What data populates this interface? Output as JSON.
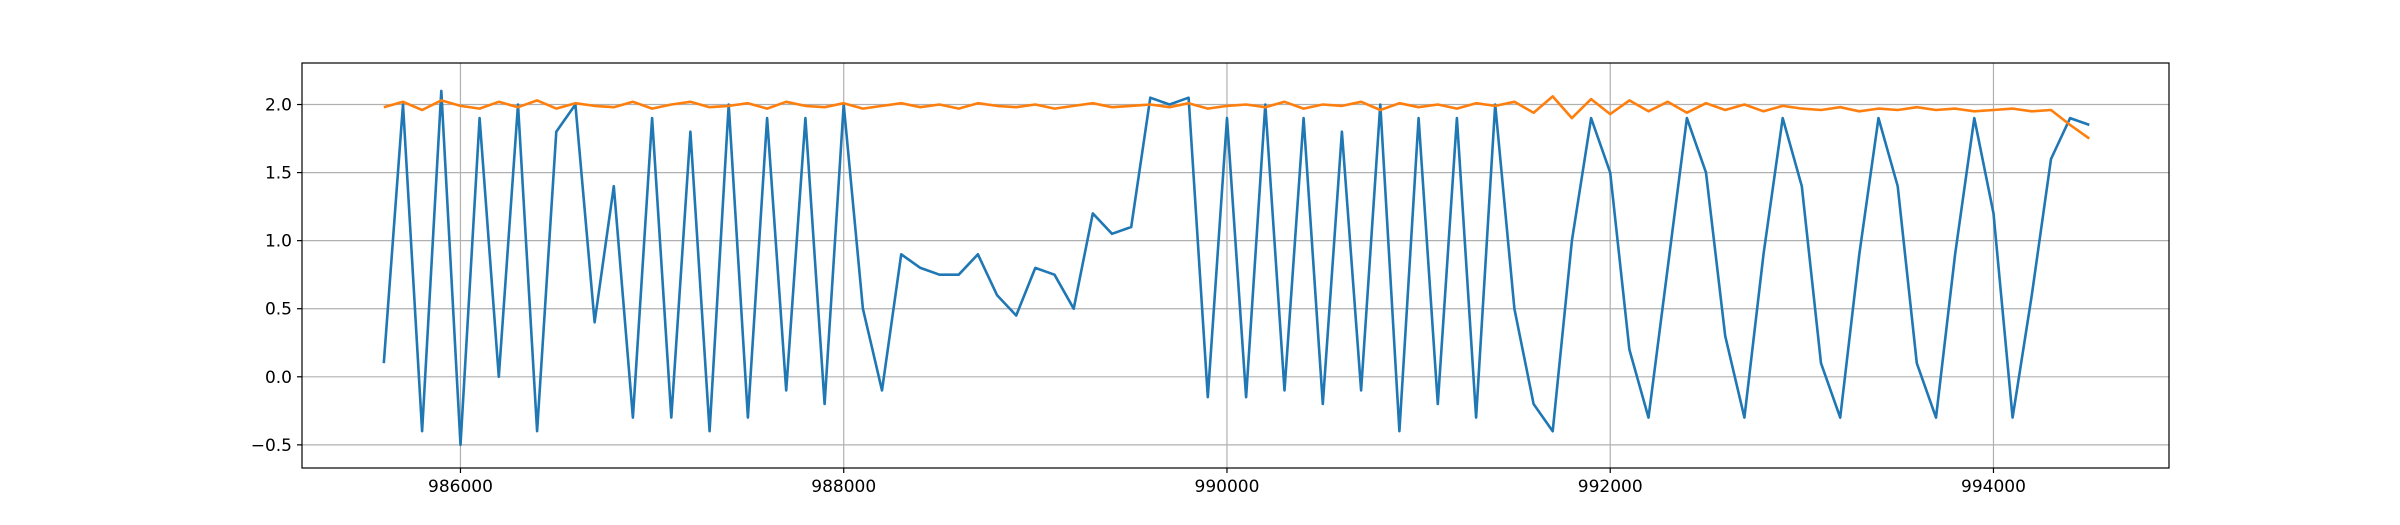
{
  "chart_data": {
    "type": "line",
    "x": [
      985600,
      985700,
      985800,
      985900,
      986000,
      986100,
      986200,
      986300,
      986400,
      986500,
      986600,
      986700,
      986800,
      986900,
      987000,
      987100,
      987200,
      987300,
      987400,
      987500,
      987600,
      987700,
      987800,
      987900,
      988000,
      988100,
      988200,
      988300,
      988400,
      988500,
      988600,
      988700,
      988800,
      988900,
      989000,
      989100,
      989200,
      989300,
      989400,
      989500,
      989600,
      989700,
      989800,
      989900,
      990000,
      990100,
      990200,
      990300,
      990400,
      990500,
      990600,
      990700,
      990800,
      990900,
      991000,
      991100,
      991200,
      991300,
      991400,
      991500,
      991600,
      991700,
      991800,
      991900,
      992000,
      992100,
      992200,
      992300,
      992400,
      992500,
      992600,
      992700,
      992800,
      992900,
      993000,
      993100,
      993200,
      993300,
      993400,
      993500,
      993600,
      993700,
      993800,
      993900,
      994000,
      994100,
      994200,
      994300,
      994400,
      994500
    ],
    "series": [
      {
        "color": "#1f77b4",
        "values": [
          0.1,
          2.0,
          -0.4,
          2.1,
          -0.5,
          1.9,
          0.0,
          2.0,
          -0.4,
          1.8,
          2.0,
          0.4,
          1.4,
          -0.3,
          1.9,
          -0.3,
          1.8,
          -0.4,
          2.0,
          -0.3,
          1.9,
          -0.1,
          1.9,
          -0.2,
          2.0,
          0.5,
          -0.1,
          0.9,
          0.8,
          0.75,
          0.75,
          0.9,
          0.6,
          0.45,
          0.8,
          0.75,
          0.5,
          1.2,
          1.05,
          1.1,
          2.05,
          2.0,
          2.05,
          -0.15,
          1.9,
          -0.15,
          2.0,
          -0.1,
          1.9,
          -0.2,
          1.8,
          -0.1,
          2.0,
          -0.4,
          1.9,
          -0.2,
          1.9,
          -0.3,
          2.0,
          0.5,
          -0.2,
          -0.4,
          1.0,
          1.9,
          1.5,
          0.2,
          -0.3,
          0.8,
          1.9,
          1.5,
          0.3,
          -0.3,
          0.9,
          1.9,
          1.4,
          0.1,
          -0.3,
          0.9,
          1.9,
          1.4,
          0.1,
          -0.3,
          0.9,
          1.9,
          1.2,
          -0.3,
          0.6,
          1.6,
          1.9,
          1.85
        ]
      },
      {
        "color": "#ff7f0e",
        "values": [
          1.98,
          2.02,
          1.96,
          2.03,
          1.99,
          1.97,
          2.02,
          1.98,
          2.03,
          1.97,
          2.01,
          1.99,
          1.98,
          2.02,
          1.97,
          2.0,
          2.02,
          1.98,
          1.99,
          2.01,
          1.97,
          2.02,
          1.99,
          1.98,
          2.01,
          1.97,
          1.99,
          2.01,
          1.98,
          2.0,
          1.97,
          2.01,
          1.99,
          1.98,
          2.0,
          1.97,
          1.99,
          2.01,
          1.98,
          1.99,
          2.0,
          1.98,
          2.01,
          1.97,
          1.99,
          2.0,
          1.98,
          2.02,
          1.97,
          2.0,
          1.99,
          2.02,
          1.96,
          2.01,
          1.98,
          2.0,
          1.97,
          2.01,
          1.99,
          2.02,
          1.94,
          2.06,
          1.9,
          2.04,
          1.93,
          2.03,
          1.95,
          2.02,
          1.94,
          2.01,
          1.96,
          2.0,
          1.95,
          1.99,
          1.97,
          1.96,
          1.98,
          1.95,
          1.97,
          1.96,
          1.98,
          1.96,
          1.97,
          1.95,
          1.96,
          1.97,
          1.95,
          1.96,
          1.85,
          1.75
        ]
      }
    ],
    "xlim": [
      985173,
      994916
    ],
    "ylim": [
      -0.67,
      2.305
    ],
    "xticks": [
      986000,
      988000,
      990000,
      992000,
      994000
    ],
    "yticks": [
      {
        "value": -0.5,
        "label": "−0.5"
      },
      {
        "value": 0,
        "label": "0.0"
      },
      0.5,
      {
        "value": 1,
        "label": "1.0"
      },
      1.5,
      {
        "value": 2,
        "label": "2.0"
      }
    ],
    "grid": true
  }
}
